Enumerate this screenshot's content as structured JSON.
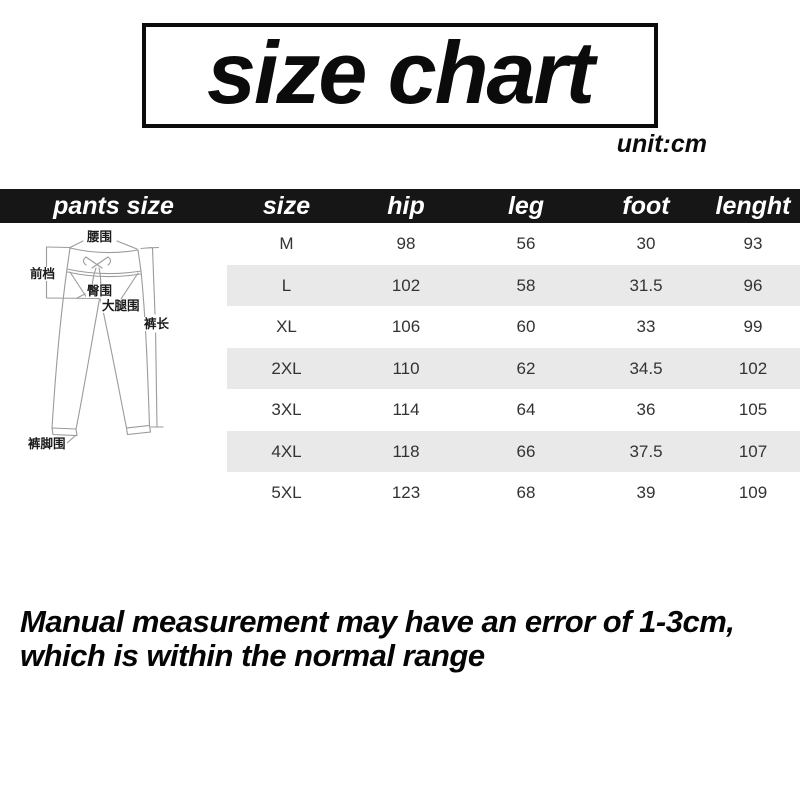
{
  "title": {
    "text": "size chart",
    "unit": "unit:cm"
  },
  "table": {
    "headers": [
      "pants size",
      "size",
      "hip",
      "leg",
      "foot",
      "lenght"
    ],
    "column_keys": [
      "size",
      "hip",
      "leg",
      "foot",
      "lenght"
    ],
    "rows": [
      {
        "size": "M",
        "hip": "98",
        "leg": "56",
        "foot": "30",
        "lenght": "93"
      },
      {
        "size": "L",
        "hip": "102",
        "leg": "58",
        "foot": "31.5",
        "lenght": "96"
      },
      {
        "size": "XL",
        "hip": "106",
        "leg": "60",
        "foot": "33",
        "lenght": "99"
      },
      {
        "size": "2XL",
        "hip": "110",
        "leg": "62",
        "foot": "34.5",
        "lenght": "102"
      },
      {
        "size": "3XL",
        "hip": "114",
        "leg": "64",
        "foot": "36",
        "lenght": "105"
      },
      {
        "size": "4XL",
        "hip": "118",
        "leg": "66",
        "foot": "37.5",
        "lenght": "107"
      },
      {
        "size": "5XL",
        "hip": "123",
        "leg": "68",
        "foot": "39",
        "lenght": "109"
      }
    ]
  },
  "diagram": {
    "labels": {
      "waist": "腰围",
      "front_rise": "前档",
      "hip": "臀围",
      "thigh": "大腿围",
      "length": "裤长",
      "leg_opening": "裤脚围"
    }
  },
  "footer": {
    "line1": "Manual measurement may have an error of 1-3cm,",
    "line2": "which is within the normal range"
  },
  "colors": {
    "header_bg": "#161616",
    "header_text": "#ffffff",
    "stripe": "#e9e9e9",
    "cell_text": "#333333",
    "accent_black": "#0b0b0b",
    "sketch_line": "#9b9b9b"
  },
  "chart_data": {
    "type": "table",
    "title": "size chart",
    "unit": "cm",
    "columns": [
      "size",
      "hip",
      "leg",
      "foot",
      "lenght"
    ],
    "rows": [
      [
        "M",
        98,
        56,
        30,
        93
      ],
      [
        "L",
        102,
        58,
        31.5,
        96
      ],
      [
        "XL",
        106,
        60,
        33,
        99
      ],
      [
        "2XL",
        110,
        62,
        34.5,
        102
      ],
      [
        "3XL",
        114,
        64,
        36,
        105
      ],
      [
        "4XL",
        118,
        66,
        37.5,
        107
      ],
      [
        "5XL",
        123,
        68,
        39,
        109
      ]
    ],
    "notes": "Manual measurement may have an error of 1-3cm, which is within the normal range"
  }
}
